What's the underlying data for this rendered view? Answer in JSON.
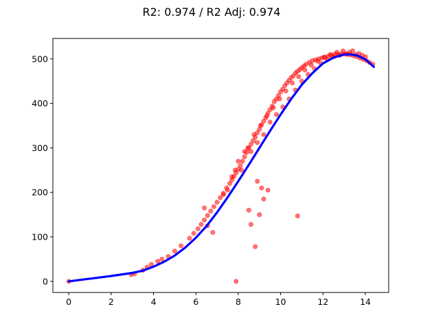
{
  "chart_data": {
    "type": "scatter",
    "title": "R2: 0.974 / R2 Adj: 0.974",
    "xlabel": "",
    "ylabel": "",
    "xlim": [
      -0.75,
      15.1
    ],
    "ylim": [
      -25,
      546
    ],
    "x_ticks": [
      0,
      2,
      4,
      6,
      8,
      10,
      12,
      14
    ],
    "x_tick_labels": [
      "0",
      "2",
      "4",
      "6",
      "8",
      "10",
      "12",
      "14"
    ],
    "y_ticks": [
      0,
      100,
      200,
      300,
      400,
      500
    ],
    "y_tick_labels": [
      "0",
      "100",
      "200",
      "300",
      "400",
      "500"
    ],
    "grid": false,
    "legend": "none",
    "series": [
      {
        "kind": "scatter",
        "color": "#ff0000",
        "opacity": 0.55,
        "x": [
          0.0,
          2.95,
          3.1,
          3.5,
          3.7,
          3.9,
          4.2,
          4.4,
          4.7,
          5.0,
          5.3,
          5.7,
          5.9,
          6.1,
          6.25,
          6.4,
          6.55,
          6.7,
          6.85,
          7.0,
          7.15,
          7.3,
          7.45,
          7.6,
          7.7,
          7.8,
          7.9,
          8.0,
          8.1,
          8.2,
          8.3,
          8.4,
          8.5,
          8.6,
          8.7,
          8.8,
          8.9,
          9.0,
          9.1,
          9.2,
          9.3,
          9.4,
          9.5,
          9.6,
          9.7,
          9.8,
          9.9,
          10.0,
          10.1,
          10.2,
          10.3,
          10.4,
          10.5,
          10.6,
          10.7,
          10.8,
          10.9,
          11.0,
          11.1,
          11.2,
          11.35,
          11.5,
          11.65,
          11.8,
          11.95,
          12.1,
          12.25,
          12.4,
          12.55,
          12.7,
          12.85,
          13.0,
          13.15,
          13.3,
          13.45,
          13.6,
          13.75,
          13.9,
          14.05,
          14.2,
          14.35,
          6.4,
          6.55,
          6.8,
          7.3,
          7.5,
          7.7,
          7.85,
          8.0,
          8.15,
          8.3,
          8.45,
          8.6,
          8.75,
          8.9,
          9.05,
          9.2,
          9.35,
          9.5,
          9.65,
          9.8,
          9.95,
          10.1,
          10.25,
          10.4,
          10.55,
          10.7,
          10.85,
          11.0,
          11.15,
          11.3,
          11.45,
          11.6,
          11.75,
          11.9,
          12.05,
          12.2,
          12.35,
          12.5,
          12.65,
          12.8,
          12.95,
          13.1,
          13.25,
          13.4,
          13.55,
          13.7,
          13.85,
          14.0,
          7.9,
          8.6,
          8.8,
          9.0,
          9.4,
          10.8,
          8.5,
          9.2,
          8.9,
          9.1
        ],
        "y": [
          0,
          15,
          17,
          25,
          32,
          38,
          45,
          50,
          56,
          68,
          80,
          97,
          108,
          118,
          128,
          138,
          148,
          158,
          168,
          178,
          188,
          198,
          210,
          220,
          228,
          236,
          244,
          252,
          260,
          270,
          280,
          290,
          300,
          308,
          316,
          324,
          334,
          342,
          352,
          360,
          368,
          378,
          386,
          394,
          404,
          410,
          418,
          426,
          432,
          440,
          446,
          452,
          458,
          462,
          468,
          472,
          476,
          480,
          484,
          488,
          492,
          496,
          498,
          500,
          502,
          504,
          506,
          508,
          510,
          510,
          511,
          511,
          510,
          509,
          507,
          505,
          502,
          499,
          496,
          492,
          488,
          165,
          125,
          110,
          195,
          205,
          235,
          250,
          270,
          250,
          292,
          300,
          292,
          330,
          312,
          350,
          330,
          372,
          358,
          390,
          375,
          410,
          392,
          428,
          410,
          446,
          430,
          460,
          450,
          475,
          465,
          486,
          478,
          495,
          490,
          504,
          498,
          510,
          505,
          515,
          508,
          518,
          512,
          515,
          518,
          510,
          512,
          508,
          505,
          0,
          128,
          78,
          150,
          205,
          147,
          160,
          185,
          225,
          210
        ]
      },
      {
        "kind": "line",
        "name": "",
        "color": "#0000ff",
        "x": [
          0.0,
          1.0,
          2.0,
          3.0,
          3.5,
          4.0,
          4.5,
          5.0,
          5.5,
          6.0,
          6.5,
          7.0,
          7.5,
          8.0,
          8.5,
          9.0,
          9.5,
          10.0,
          10.5,
          11.0,
          11.5,
          12.0,
          12.5,
          13.0,
          13.3,
          13.6,
          14.0,
          14.4
        ],
        "y": [
          0,
          6,
          12,
          19,
          24,
          33,
          44,
          58,
          76,
          98,
          124,
          155,
          189,
          225,
          262,
          300,
          338,
          375,
          410,
          442,
          468,
          490,
          503,
          510,
          510,
          508,
          499,
          482
        ]
      }
    ]
  }
}
